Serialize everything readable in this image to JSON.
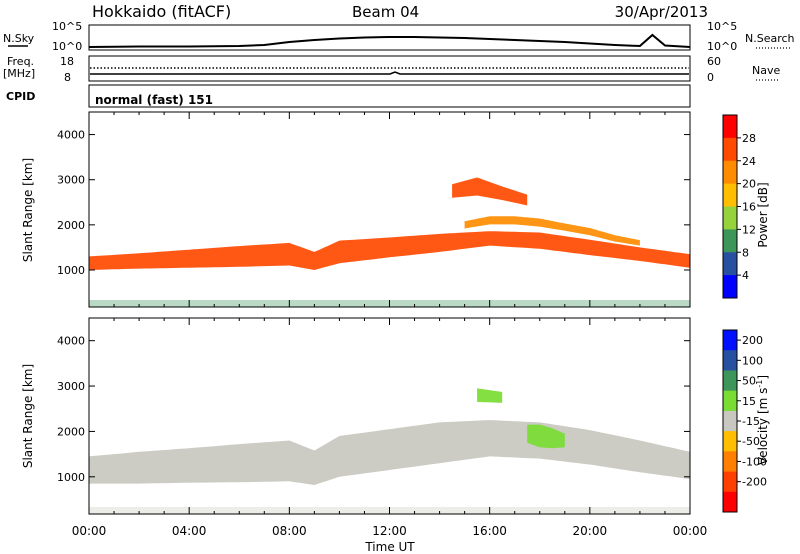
{
  "header": {
    "radar": "Hokkaido (fitACF)",
    "beam": "Beam 04",
    "date": "30/Apr/2013"
  },
  "sky_panel": {
    "label": "N.Sky",
    "ticks": [
      "10^5",
      "10^0"
    ],
    "right_ticks": [
      "10^5",
      "10^0"
    ],
    "right_label": "N.Search"
  },
  "freq_panel": {
    "label_line1": "Freq.",
    "label_line2": "[MHz]",
    "ticks": [
      "18",
      "8"
    ],
    "right_ticks": [
      "60",
      "0"
    ],
    "right_label": "Nave"
  },
  "cpid_panel": {
    "label": "CPID",
    "mode": "normal (fast) 151"
  },
  "axes": {
    "y_label": "Slant Range [km]",
    "y_ticks": [
      "4000",
      "3000",
      "2000",
      "1000"
    ],
    "x_label": "Time UT",
    "x_ticks": [
      "00:00",
      "04:00",
      "08:00",
      "12:00",
      "16:00",
      "20:00",
      "00:00"
    ]
  },
  "power_colorbar": {
    "label": "Power [dB]",
    "ticks": [
      "28",
      "24",
      "20",
      "16",
      "12",
      "8",
      "4"
    ],
    "colors": [
      "#ff0000",
      "#ff4a00",
      "#ff8c00",
      "#ffbe00",
      "#96d23c",
      "#3c965a",
      "#2850a0",
      "#0000ff"
    ]
  },
  "velocity_colorbar": {
    "label": "Velocity",
    "unit": "[m s",
    "unit_exp": "-1",
    "unit_end": "]",
    "ticks": [
      "200",
      "100",
      "50",
      "15",
      "-15",
      "-50",
      "-100",
      "-200"
    ],
    "colors": [
      "#0010ff",
      "#2850a0",
      "#3c965a",
      "#78dc32",
      "#c8c8c0",
      "#ffbe00",
      "#ff8000",
      "#ff4000",
      "#ff0000"
    ]
  },
  "chart_data": [
    {
      "type": "line",
      "name": "N.Sky",
      "xlim": [
        0,
        24
      ],
      "ylim_log10": [
        0,
        5
      ],
      "x": [
        0,
        2,
        4,
        6,
        7,
        8,
        9,
        10,
        11,
        12,
        13,
        14,
        15,
        16,
        17,
        18,
        19,
        20,
        21,
        22,
        22.5,
        23,
        24
      ],
      "y_log10": [
        0.6,
        0.7,
        0.7,
        0.8,
        1.0,
        1.6,
        2.0,
        2.3,
        2.5,
        2.6,
        2.6,
        2.5,
        2.4,
        2.2,
        2.0,
        1.8,
        1.6,
        1.3,
        1.0,
        0.8,
        3.0,
        0.9,
        0.6
      ]
    },
    {
      "type": "heatmap",
      "name": "Power",
      "xlabel": "Time UT",
      "ylabel": "Slant Range [km]",
      "xlim": [
        0,
        24
      ],
      "ylim": [
        180,
        4500
      ],
      "colorbar_range_db": [
        0,
        32
      ],
      "bands": [
        {
          "t": [
            0,
            2,
            4,
            6,
            8,
            9,
            10,
            12,
            14,
            16,
            18,
            20,
            22,
            24
          ],
          "center_km": [
            1150,
            1200,
            1250,
            1300,
            1350,
            1200,
            1400,
            1500,
            1600,
            1700,
            1650,
            1500,
            1350,
            1200
          ],
          "half_width_km": [
            150,
            170,
            200,
            230,
            250,
            200,
            250,
            220,
            200,
            160,
            180,
            170,
            150,
            150
          ],
          "power_db": 28
        },
        {
          "t": [
            14.5,
            15.5,
            16.5,
            17.5
          ],
          "center_km": [
            2750,
            2850,
            2700,
            2550
          ],
          "half_width_km": [
            150,
            200,
            150,
            120
          ],
          "power_db": 26
        },
        {
          "t": [
            15,
            16,
            17,
            18,
            19,
            20,
            21,
            22
          ],
          "center_km": [
            2000,
            2100,
            2100,
            2050,
            1950,
            1850,
            1700,
            1600
          ],
          "half_width_km": [
            80,
            90,
            90,
            90,
            80,
            80,
            70,
            60
          ],
          "power_db": 22
        }
      ]
    },
    {
      "type": "heatmap",
      "name": "Velocity",
      "xlabel": "Time UT",
      "ylabel": "Slant Range [km]",
      "xlim": [
        0,
        24
      ],
      "ylim": [
        180,
        4500
      ],
      "colorbar_range_ms": [
        -200,
        200
      ],
      "bands": [
        {
          "t": [
            0,
            2,
            4,
            6,
            8,
            9,
            10,
            12,
            14,
            16,
            18,
            20,
            22,
            24
          ],
          "center_km": [
            1150,
            1200,
            1250,
            1300,
            1350,
            1200,
            1450,
            1600,
            1750,
            1850,
            1800,
            1650,
            1450,
            1250
          ],
          "half_width_km": [
            300,
            350,
            380,
            420,
            450,
            380,
            450,
            450,
            450,
            400,
            400,
            380,
            350,
            300
          ],
          "velocity_ms": 0
        },
        {
          "t": [
            15.5,
            16.5
          ],
          "center_km": [
            2800,
            2750
          ],
          "half_width_km": [
            150,
            120
          ],
          "velocity_ms": 30
        },
        {
          "t": [
            17.5,
            18,
            18.5,
            19
          ],
          "center_km": [
            1950,
            1900,
            1850,
            1800
          ],
          "half_width_km": [
            200,
            250,
            220,
            150
          ],
          "velocity_ms": 30
        }
      ]
    }
  ]
}
